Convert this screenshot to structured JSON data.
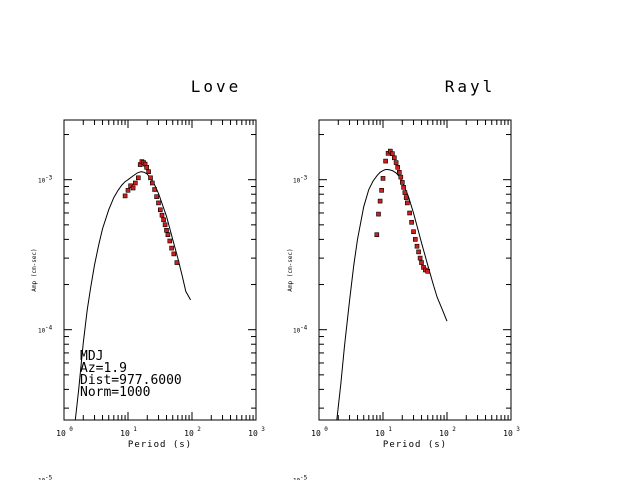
{
  "colors": {
    "axis": "#000000",
    "curve": "#000000",
    "marker_fill": "#cc2020",
    "marker_stroke": "#000000"
  },
  "chart_data": [
    {
      "type": "scatter",
      "title": "Love",
      "xlabel": "Period (s)",
      "ylabel": "Amp (cm-sec)",
      "xscale": "log",
      "yscale": "log",
      "xlim": [
        1,
        1000
      ],
      "ylim": [
        2.5e-05,
        0.0025
      ],
      "x_ticks": [
        {
          "base": "10",
          "exp": "0"
        },
        {
          "base": "10",
          "exp": "1"
        },
        {
          "base": "10",
          "exp": "2"
        },
        {
          "base": "10",
          "exp": "3"
        }
      ],
      "y_ticks": [
        {
          "value": 0.001,
          "base": "10",
          "exp": "-3"
        },
        {
          "value": 0.0001,
          "base": "10",
          "exp": "-4"
        },
        {
          "value": 1e-05,
          "base": "10",
          "exp": "-5"
        }
      ],
      "series": [
        {
          "kind": "line",
          "x": [
            1.5,
            1.7,
            2.0,
            2.3,
            2.6,
            3.0,
            3.5,
            4.0,
            5.0,
            6.0,
            7.0,
            8.0,
            9.0,
            10.0,
            12.0,
            14.0,
            16.0,
            18.0,
            20.0,
            25.0,
            30.0,
            40.0,
            50.0,
            60.0,
            70.0,
            80.0,
            95.0
          ],
          "y": [
            2.5e-05,
            4e-05,
            8.2e-05,
            0.000135,
            0.00019,
            0.00027,
            0.00037,
            0.00047,
            0.00063,
            0.00076,
            0.00085,
            0.00092,
            0.00097,
            0.001,
            0.00106,
            0.00111,
            0.00113,
            0.00112,
            0.00109,
            0.00096,
            0.00081,
            0.00057,
            0.0004,
            0.0003,
            0.00023,
            0.00018,
            0.000158
          ]
        },
        {
          "kind": "markers",
          "x": [
            9.0,
            10.0,
            11.0,
            12.0,
            13.0,
            14.5,
            15.5,
            16.5,
            17.5,
            18.5,
            19.5,
            21.0,
            22.5,
            24.0,
            26.0,
            28.0,
            30.0,
            32.0,
            34.0,
            36.0,
            38.0,
            40.0,
            42.0,
            45.0,
            48.0,
            52.0,
            58.0
          ],
          "y": [
            0.00078,
            0.00085,
            0.00091,
            0.00088,
            0.00095,
            0.00103,
            0.00126,
            0.00132,
            0.0013,
            0.00127,
            0.00121,
            0.00113,
            0.00103,
            0.00095,
            0.00086,
            0.00077,
            0.0007,
            0.00063,
            0.00058,
            0.00054,
            0.0005,
            0.00046,
            0.00043,
            0.00039,
            0.00035,
            0.00032,
            0.00028
          ]
        }
      ],
      "annotations": [
        "MDJ",
        "Az=1.9",
        "Dist=977.6000",
        "Norm=1000"
      ]
    },
    {
      "type": "scatter",
      "title": "Rayl",
      "xlabel": "Period (s)",
      "ylabel": "Amp (cm-sec)",
      "xscale": "log",
      "yscale": "log",
      "xlim": [
        1,
        1000
      ],
      "ylim": [
        2.5e-05,
        0.0025
      ],
      "x_ticks": [
        {
          "base": "10",
          "exp": "0"
        },
        {
          "base": "10",
          "exp": "1"
        },
        {
          "base": "10",
          "exp": "2"
        },
        {
          "base": "10",
          "exp": "3"
        }
      ],
      "y_ticks": [
        {
          "value": 0.001,
          "base": "10",
          "exp": "-3"
        },
        {
          "value": 0.0001,
          "base": "10",
          "exp": "-4"
        },
        {
          "value": 1e-05,
          "base": "10",
          "exp": "-5"
        }
      ],
      "series": [
        {
          "kind": "line",
          "x": [
            1.9,
            2.2,
            2.5,
            3.0,
            3.5,
            4.0,
            5.0,
            6.0,
            7.0,
            8.0,
            9.0,
            10.0,
            11.0,
            12.0,
            14.0,
            16.0,
            18.0,
            20.0,
            25.0,
            30.0,
            35.0,
            40.0,
            50.0,
            60.0,
            70.0,
            85.0,
            100.0
          ],
          "y": [
            2.5e-05,
            4.4e-05,
            7.8e-05,
            0.000155,
            0.00027,
            0.0004,
            0.00066,
            0.00086,
            0.00098,
            0.00106,
            0.00112,
            0.00115,
            0.00117,
            0.00117,
            0.00115,
            0.00111,
            0.00105,
            0.00097,
            0.00077,
            0.0006,
            0.00047,
            0.00038,
            0.00027,
            0.000205,
            0.000165,
            0.000135,
            0.000114
          ]
        },
        {
          "kind": "markers",
          "x": [
            8.0,
            8.5,
            9.0,
            9.5,
            10.0,
            11.0,
            12.0,
            13.0,
            14.0,
            15.0,
            16.0,
            17.0,
            18.0,
            19.0,
            20.0,
            21.0,
            22.0,
            23.0,
            24.0,
            26.0,
            28.0,
            30.0,
            32.0,
            34.0,
            36.0,
            38.0,
            40.0,
            43.0,
            46.0,
            50.0
          ],
          "y": [
            0.00043,
            0.00059,
            0.00072,
            0.00085,
            0.00102,
            0.00133,
            0.0015,
            0.00155,
            0.00149,
            0.0014,
            0.0013,
            0.00121,
            0.00112,
            0.00104,
            0.00096,
            0.00089,
            0.00082,
            0.00076,
            0.0007,
            0.0006,
            0.00052,
            0.00045,
            0.0004,
            0.00036,
            0.00033,
            0.0003,
            0.00028,
            0.00026,
            0.00025,
            0.000245
          ]
        }
      ]
    }
  ]
}
